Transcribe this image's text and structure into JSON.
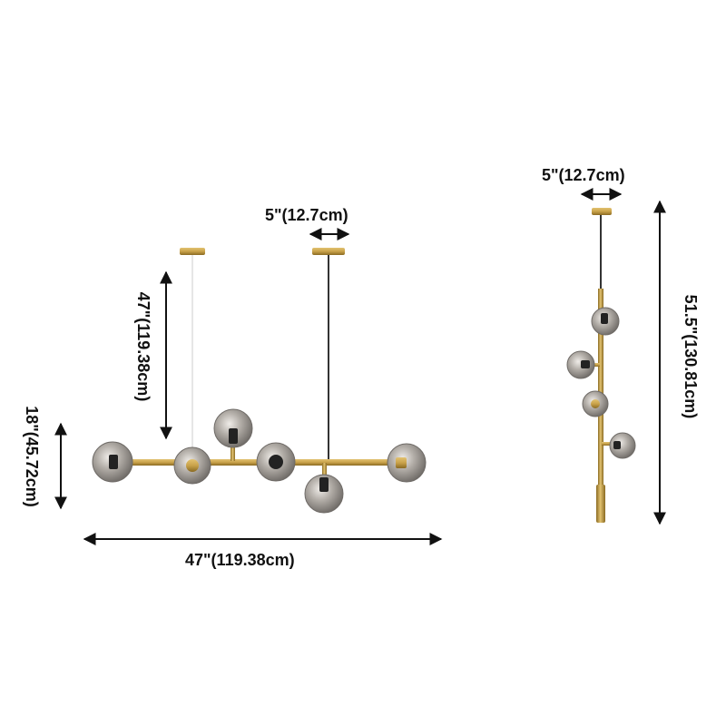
{
  "colors": {
    "background": "#ffffff",
    "dimension_line": "#111111",
    "brass": "#c9a24a",
    "brass_dark": "#8a6a22",
    "smoked_glass": "#8e8a86",
    "glass_highlight": "#e9e6e2",
    "cord_dark": "#333333",
    "cord_light": "#dddddd"
  },
  "horizontal_fixture": {
    "canopy_width_label": "5\"(12.7cm)",
    "drop_height_label": "47\"(119.38cm)",
    "body_height_label": "18\"(45.72cm)",
    "overall_width_label": "47\"(119.38cm)"
  },
  "vertical_fixture": {
    "canopy_width_label": "5\"(12.7cm)",
    "overall_height_label": "51.5\"(130.81cm)"
  }
}
